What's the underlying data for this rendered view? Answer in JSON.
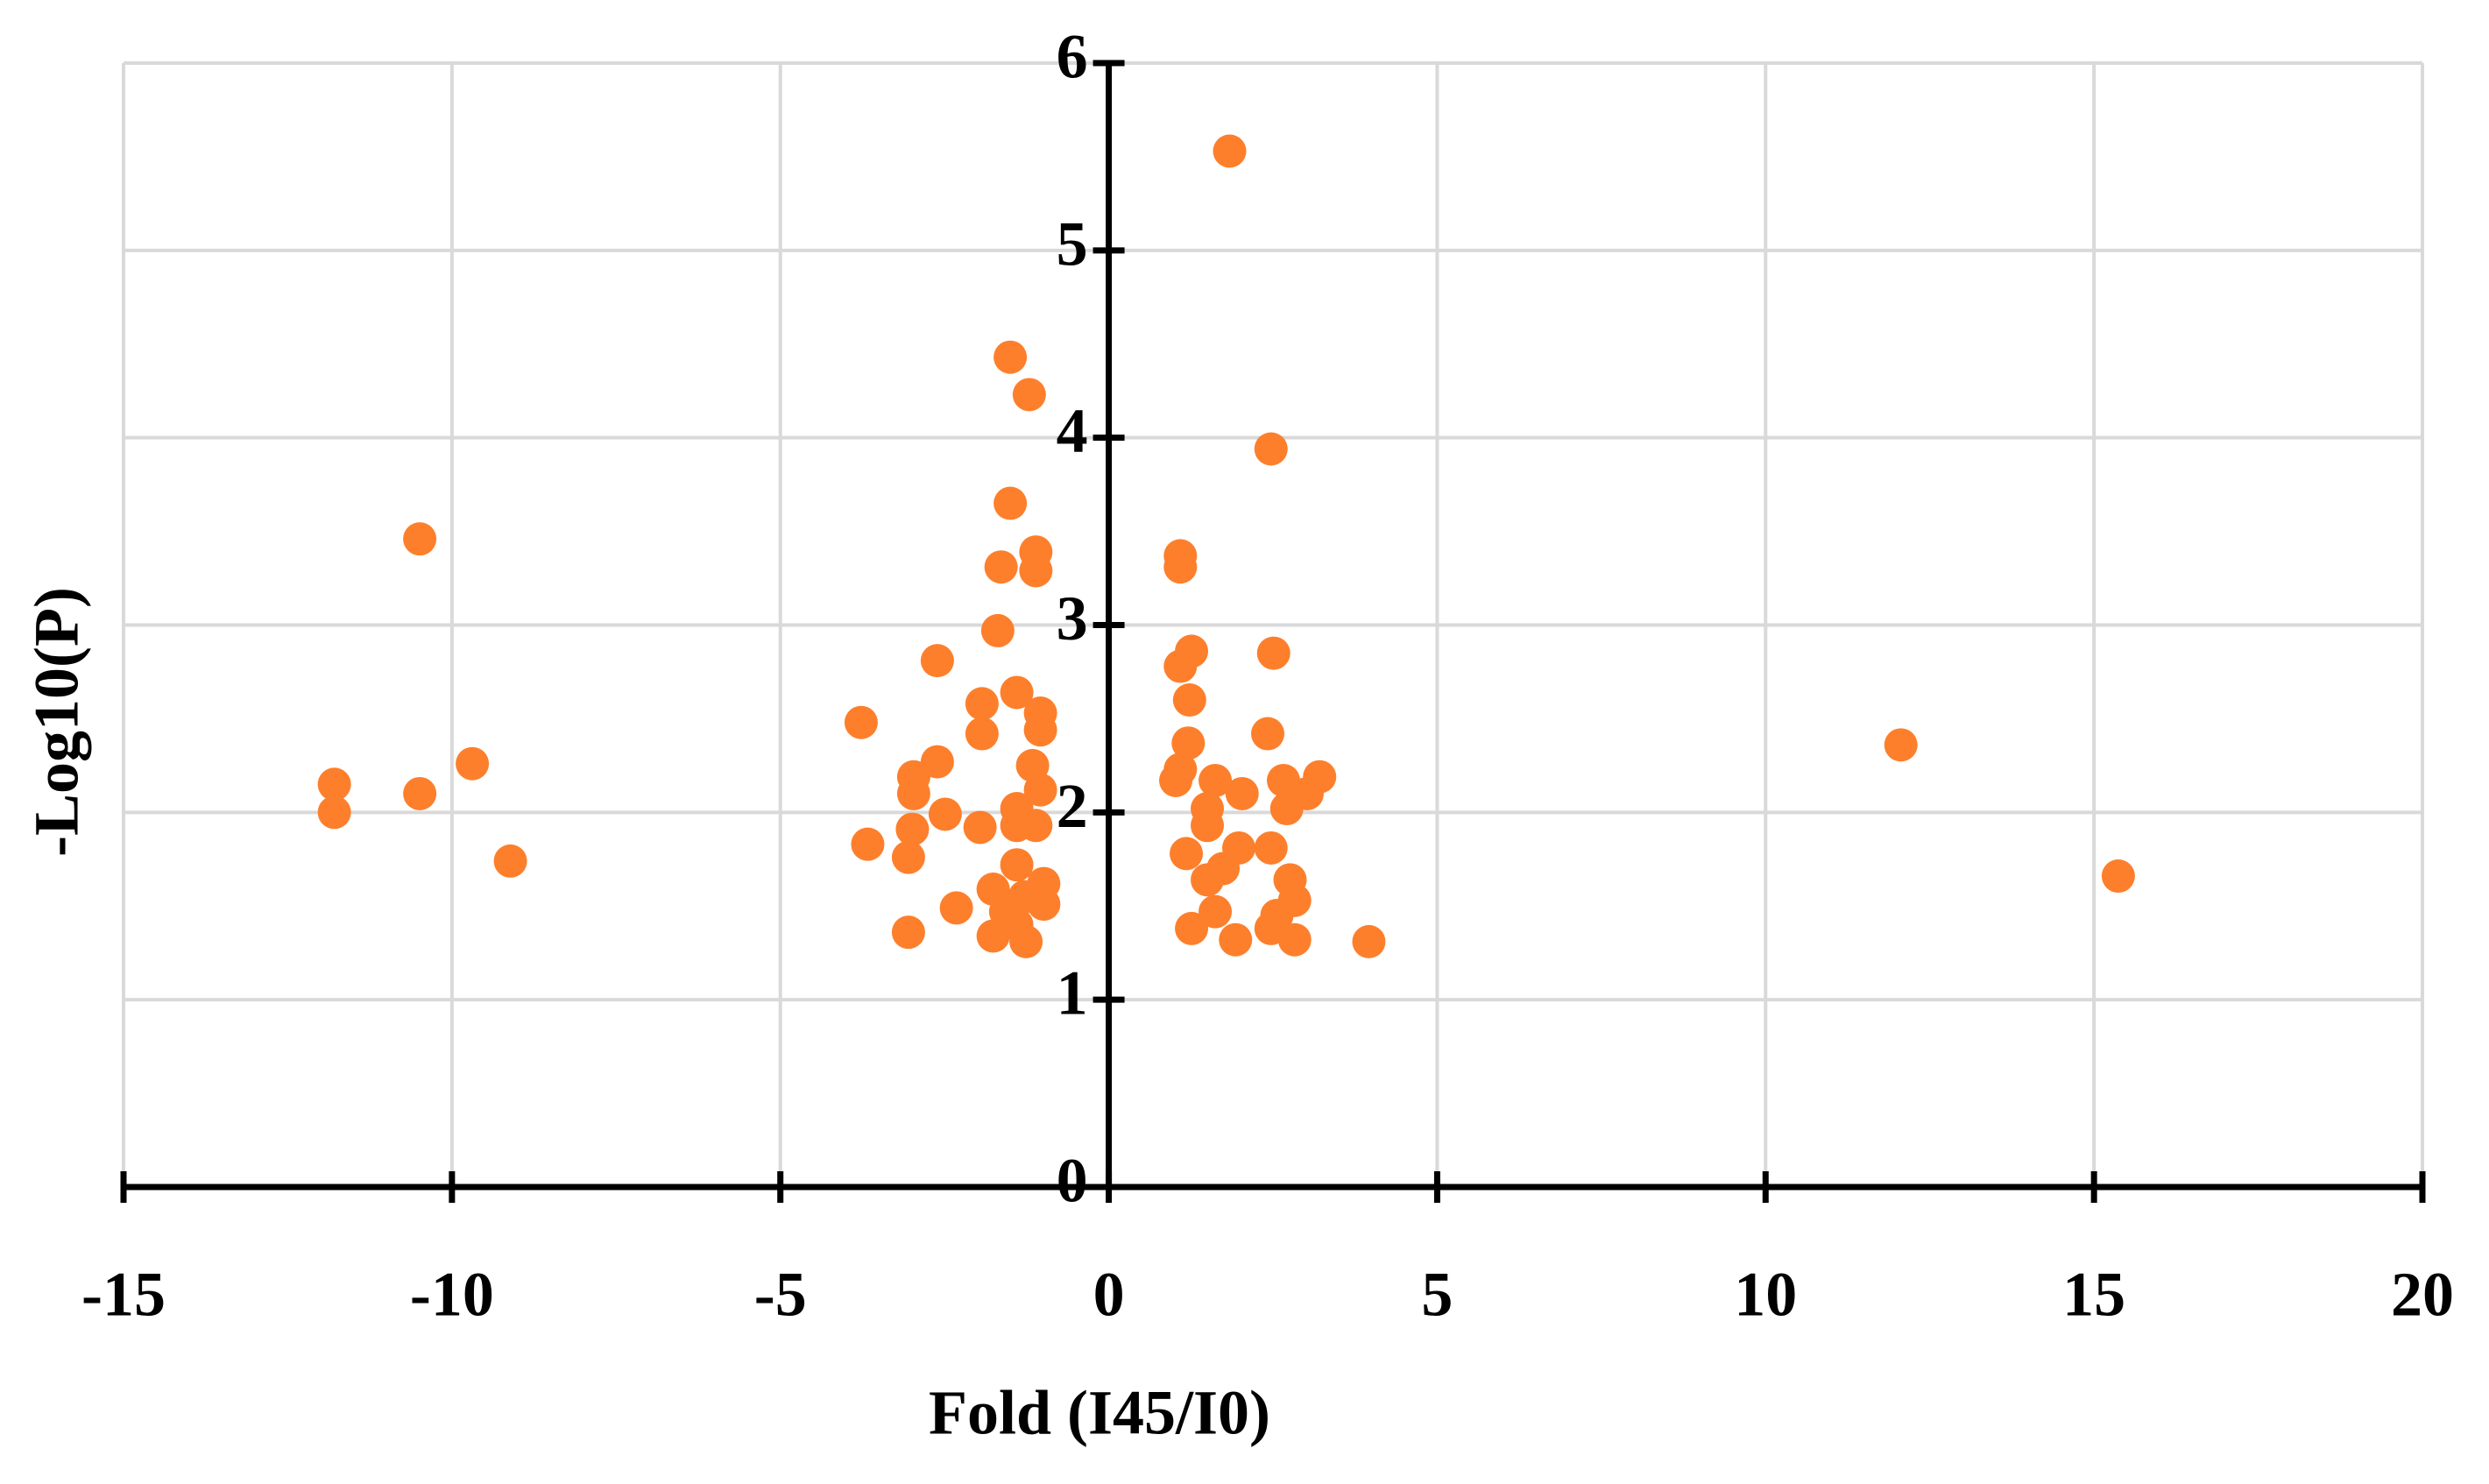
{
  "chart_data": {
    "type": "scatter",
    "x_label": "Fold (I45/I0)",
    "y_label": "-Log10(P)",
    "x": [
      1.84,
      -1.5,
      -1.21,
      2.47,
      -1.5,
      -10.49,
      -1.11,
      1.09,
      -1.64,
      1.09,
      -1.11,
      -1.69,
      -2.61,
      1.26,
      1.09,
      2.51,
      -1.4,
      1.23,
      -1.93,
      -1.04,
      -3.77,
      -1.04,
      2.42,
      -1.93,
      1.21,
      -9.69,
      12.06,
      -2.61,
      -1.16,
      1.09,
      -2.97,
      -11.79,
      3.21,
      2.66,
      1.62,
      1.02,
      2.03,
      -10.49,
      -2.97,
      3.02,
      -1.04,
      -1.4,
      1.5,
      2.71,
      -11.79,
      -2.49,
      -2.99,
      -1.4,
      1.5,
      -1.96,
      -1.11,
      -3.67,
      2.47,
      1.98,
      1.18,
      -3.05,
      -9.11,
      -1.4,
      1.74,
      15.37,
      -0.99,
      1.5,
      2.76,
      -1.76,
      -1.28,
      2.83,
      -2.32,
      -1.57,
      -0.99,
      1.62,
      2.56,
      -1.4,
      1.26,
      2.47,
      -3.05,
      -1.76,
      1.93,
      2.83,
      3.96,
      -1.26
    ],
    "values": [
      5.53,
      4.43,
      4.23,
      3.94,
      3.65,
      3.46,
      3.39,
      3.37,
      3.31,
      3.31,
      3.29,
      2.97,
      2.81,
      2.86,
      2.78,
      2.85,
      2.64,
      2.6,
      2.58,
      2.53,
      2.48,
      2.44,
      2.42,
      2.42,
      2.37,
      2.26,
      2.36,
      2.27,
      2.25,
      2.23,
      2.19,
      2.15,
      2.19,
      2.17,
      2.17,
      2.17,
      2.1,
      2.1,
      2.1,
      2.1,
      2.12,
      2.02,
      2.02,
      2.02,
      2.0,
      1.99,
      1.91,
      1.93,
      1.93,
      1.92,
      1.93,
      1.83,
      1.81,
      1.81,
      1.78,
      1.76,
      1.74,
      1.72,
      1.7,
      1.66,
      1.62,
      1.64,
      1.64,
      1.59,
      1.55,
      1.53,
      1.49,
      1.47,
      1.51,
      1.47,
      1.45,
      1.4,
      1.38,
      1.38,
      1.36,
      1.34,
      1.32,
      1.32,
      1.31,
      1.31
    ],
    "color": "#fd7f2c",
    "xlim": [
      -15,
      20
    ],
    "xticks": [
      -15,
      -10,
      -5,
      0,
      5,
      10,
      15,
      20
    ],
    "ylim": [
      0,
      6
    ],
    "yticks": [
      0,
      1,
      2,
      3,
      4,
      5,
      6
    ],
    "grid": true
  }
}
